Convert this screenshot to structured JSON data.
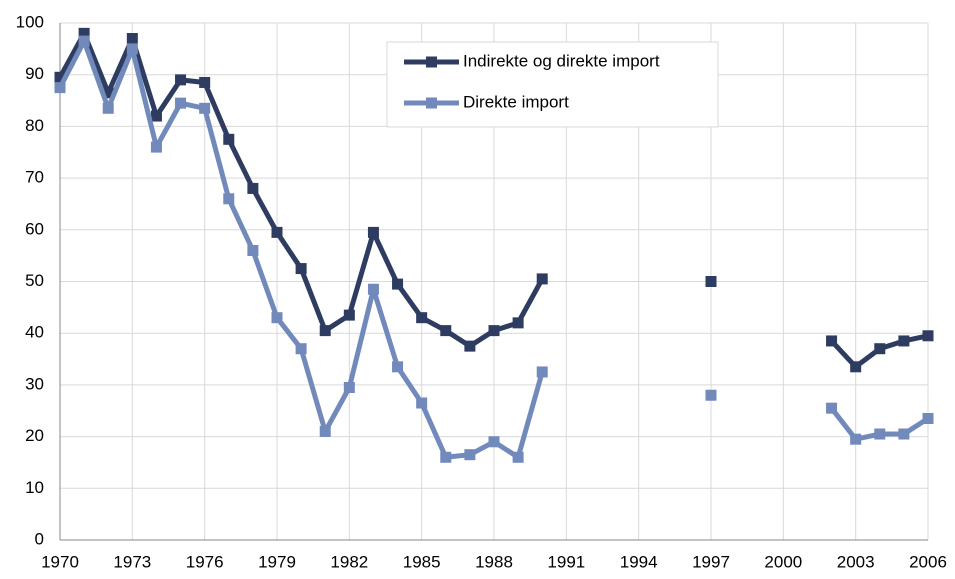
{
  "chart_data": {
    "type": "line",
    "x": [
      1970,
      1971,
      1972,
      1973,
      1974,
      1975,
      1976,
      1977,
      1978,
      1979,
      1980,
      1981,
      1982,
      1983,
      1984,
      1985,
      1986,
      1987,
      1988,
      1989,
      1990,
      1991,
      1992,
      1993,
      1994,
      1995,
      1996,
      1997,
      1998,
      1999,
      2000,
      2001,
      2002,
      2003,
      2004,
      2005,
      2006
    ],
    "series": [
      {
        "name": "Indirekte og direkte import",
        "color": "#2d3c60",
        "values": [
          89.5,
          98,
          86.5,
          97,
          82,
          89,
          88.5,
          77.5,
          68,
          59.5,
          52.5,
          40.5,
          43.5,
          59.5,
          49.5,
          43,
          40.5,
          37.5,
          40.5,
          42,
          50.5,
          null,
          null,
          null,
          null,
          null,
          null,
          50,
          null,
          null,
          null,
          null,
          38.5,
          33.5,
          37,
          38.5,
          39.5
        ]
      },
      {
        "name": "Direkte import",
        "color": "#7189bb",
        "values": [
          87.5,
          96.5,
          83.5,
          95,
          76,
          84.5,
          83.5,
          66,
          56,
          43,
          37,
          21,
          29.5,
          48.5,
          33.5,
          26.5,
          16,
          16.5,
          19,
          16,
          32.5,
          null,
          null,
          null,
          null,
          null,
          null,
          28,
          null,
          null,
          null,
          null,
          25.5,
          19.5,
          20.5,
          20.5,
          23.5
        ]
      }
    ],
    "xlim": [
      1970,
      2006
    ],
    "xticks": [
      1970,
      1973,
      1976,
      1979,
      1982,
      1985,
      1988,
      1991,
      1994,
      1997,
      2000,
      2003,
      2006
    ],
    "ylim": [
      0,
      100
    ],
    "yticks": [
      0,
      10,
      20,
      30,
      40,
      50,
      60,
      70,
      80,
      90,
      100
    ],
    "grid": true,
    "legend": "top-center"
  }
}
